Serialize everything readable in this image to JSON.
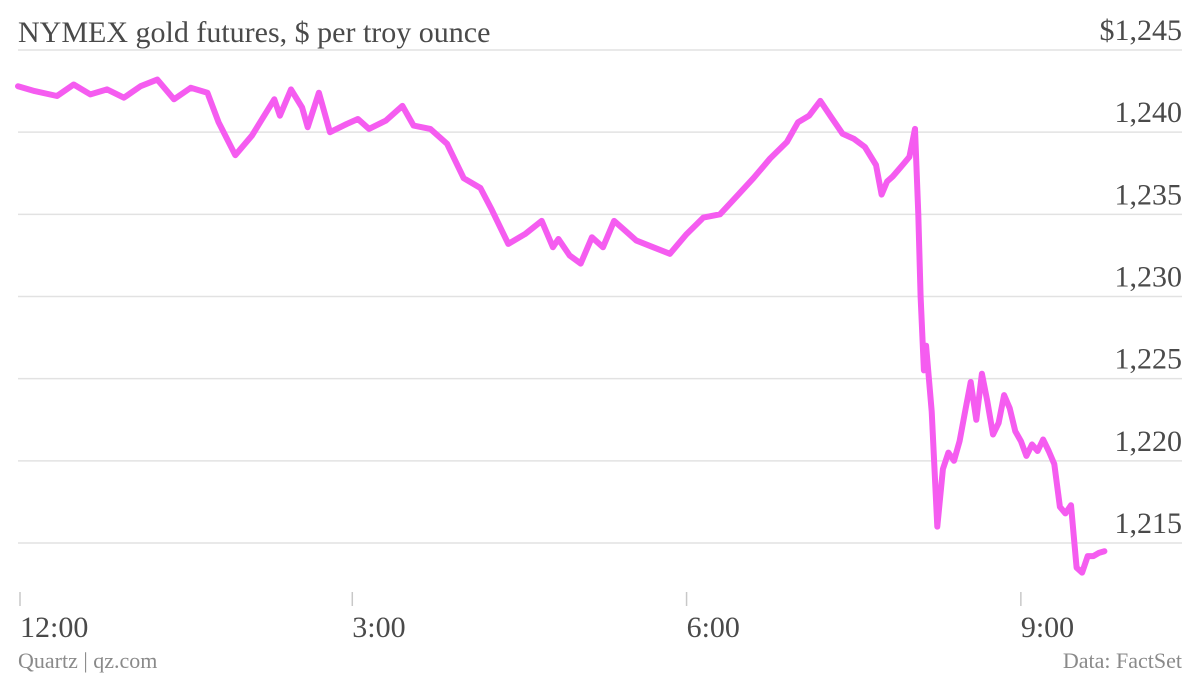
{
  "chart_data": {
    "type": "line",
    "title": "NYMEX gold futures, $ per troy ounce",
    "x_ticks": [
      "12:00",
      "3:00",
      "6:00",
      "9:00"
    ],
    "x_tick_hours": [
      0,
      3,
      6,
      9
    ],
    "xlim_hours": [
      0,
      10.5
    ],
    "y_ticks": [
      1215,
      1220,
      1225,
      1230,
      1235,
      1240,
      1245
    ],
    "y_tick_labels": [
      "1,215",
      "1,220",
      "1,225",
      "1,230",
      "1,235",
      "1,240",
      "$1,245"
    ],
    "ylim": [
      1212,
      1245
    ],
    "grid": true,
    "series": [
      {
        "color": "#f55cf0",
        "x_hours": [
          0,
          0.15,
          0.35,
          0.5,
          0.65,
          0.8,
          0.95,
          1.1,
          1.25,
          1.4,
          1.55,
          1.7,
          1.8,
          1.95,
          2.1,
          2.2,
          2.3,
          2.35,
          2.45,
          2.55,
          2.6,
          2.7,
          2.8,
          2.95,
          3.05,
          3.15,
          3.3,
          3.45,
          3.55,
          3.7,
          3.85,
          4.0,
          4.15,
          4.25,
          4.4,
          4.55,
          4.7,
          4.8,
          4.85,
          4.95,
          5.05,
          5.15,
          5.25,
          5.35,
          5.45,
          5.55,
          5.7,
          5.85,
          6.0,
          6.15,
          6.3,
          6.45,
          6.6,
          6.75,
          6.9,
          7.0,
          7.1,
          7.2,
          7.3,
          7.4,
          7.5,
          7.6,
          7.7,
          7.75,
          7.8,
          7.85,
          7.9,
          7.95,
          8.0,
          8.05,
          8.08,
          8.1,
          8.13,
          8.15,
          8.2,
          8.25,
          8.3,
          8.35,
          8.4,
          8.45,
          8.5,
          8.55,
          8.6,
          8.65,
          8.7,
          8.75,
          8.8,
          8.85,
          8.9,
          8.95,
          9.0,
          9.05,
          9.1,
          9.15,
          9.2,
          9.25,
          9.3,
          9.35,
          9.4,
          9.45,
          9.5,
          9.55,
          9.6,
          9.65,
          9.7,
          9.75
        ],
        "y": [
          1242.8,
          1242.5,
          1242.2,
          1242.9,
          1242.3,
          1242.6,
          1242.1,
          1242.8,
          1243.2,
          1242.0,
          1242.7,
          1242.4,
          1240.6,
          1238.6,
          1239.8,
          1240.9,
          1242.0,
          1241.0,
          1242.6,
          1241.5,
          1240.3,
          1242.4,
          1240.0,
          1240.5,
          1240.8,
          1240.2,
          1240.7,
          1241.6,
          1240.4,
          1240.2,
          1239.3,
          1237.2,
          1236.6,
          1235.3,
          1233.2,
          1233.8,
          1234.6,
          1233.0,
          1233.5,
          1232.5,
          1232.0,
          1233.6,
          1233.0,
          1234.6,
          1234.0,
          1233.4,
          1233.0,
          1232.6,
          1233.8,
          1234.8,
          1235.0,
          1236.1,
          1237.2,
          1238.4,
          1239.4,
          1240.6,
          1241.0,
          1241.9,
          1240.9,
          1239.9,
          1239.6,
          1239.1,
          1238.0,
          1236.2,
          1237.0,
          1237.3,
          1237.7,
          1238.1,
          1238.5,
          1240.2,
          1235.0,
          1230.0,
          1225.5,
          1227.0,
          1223.0,
          1216.0,
          1219.5,
          1220.5,
          1220.0,
          1221.2,
          1223.0,
          1224.8,
          1222.5,
          1225.3,
          1223.6,
          1221.6,
          1222.3,
          1224.0,
          1223.2,
          1221.8,
          1221.2,
          1220.3,
          1221.0,
          1220.6,
          1221.3,
          1220.6,
          1219.8,
          1217.2,
          1216.8,
          1217.3,
          1213.5,
          1213.2,
          1214.2,
          1214.2,
          1214.4,
          1214.5
        ]
      }
    ]
  },
  "footer": {
    "source_left": "Quartz | qz.com",
    "source_right": "Data: FactSet"
  }
}
